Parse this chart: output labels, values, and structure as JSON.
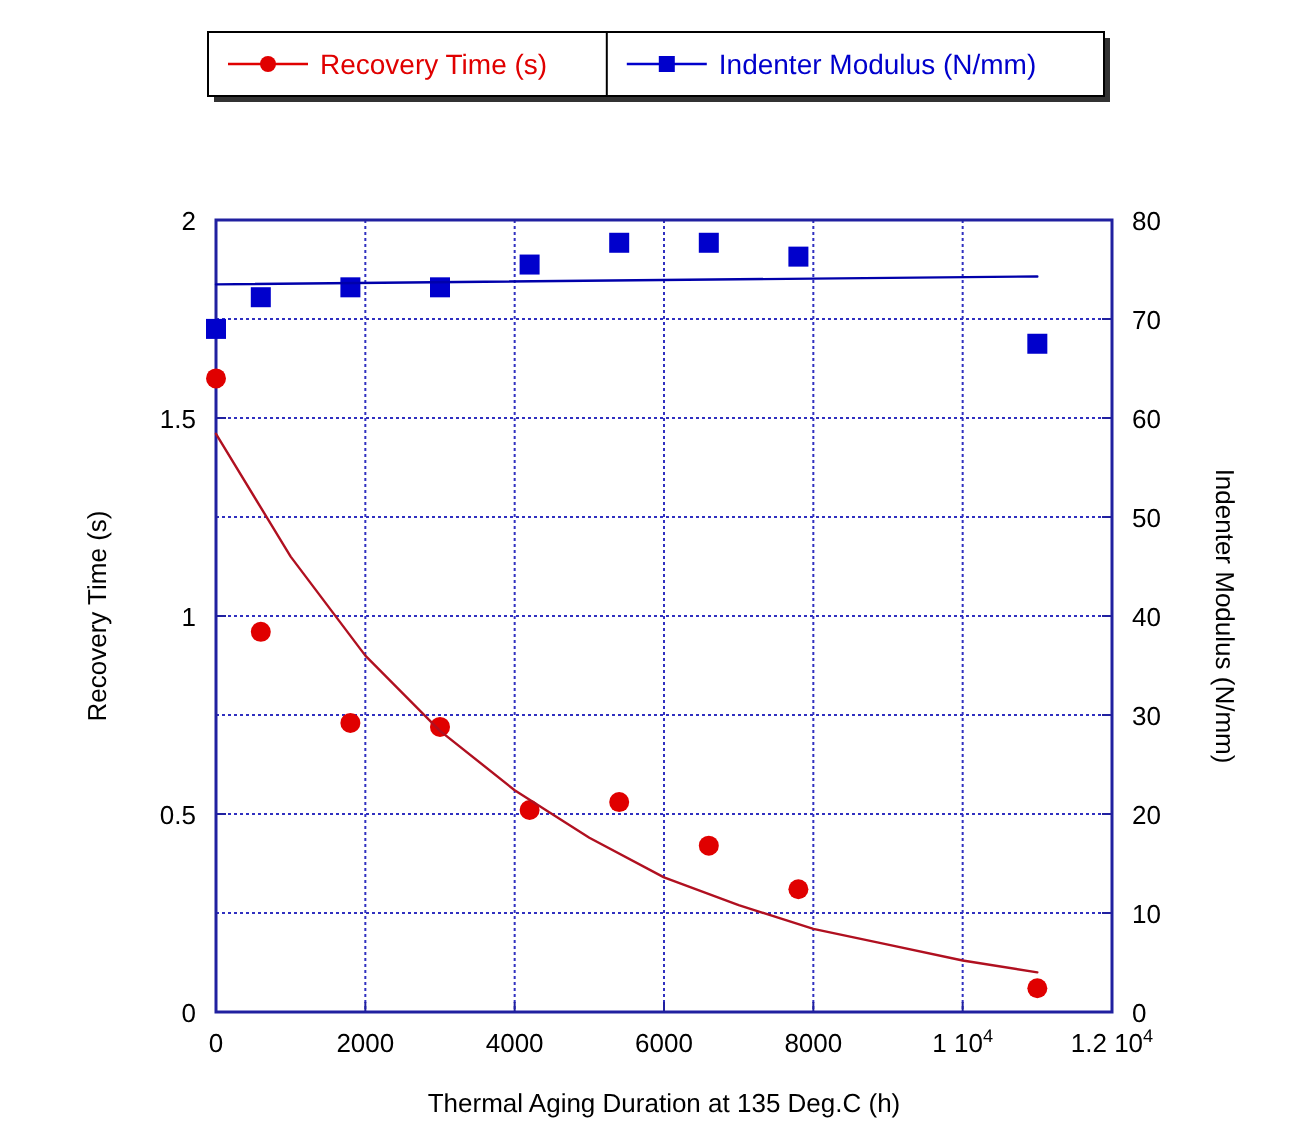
{
  "chart_data": {
    "type": "scatter",
    "xlabel": "Thermal Aging Duration at 135 Deg.C (h)",
    "ylabel": "Recovery Time (s)",
    "y2label": "Indenter Modulus (N/mm)",
    "x": [
      0,
      600,
      1800,
      3000,
      4200,
      5400,
      6600,
      7800,
      11000
    ],
    "series": [
      {
        "name": "Recovery Time (s)",
        "color": "#e00000",
        "marker": "circle",
        "values": [
          1.6,
          0.96,
          0.73,
          0.72,
          0.51,
          0.53,
          0.42,
          0.31,
          0.06
        ]
      },
      {
        "name": "Indenter Modulus (N/mm)",
        "color": "#0000cc",
        "marker": "square",
        "axis": "y2",
        "values": [
          69,
          72.2,
          73.2,
          73.2,
          75.5,
          77.7,
          77.7,
          76.3,
          67.5
        ]
      },
      {
        "type": "line",
        "color": "#b01020",
        "marker": "none",
        "x": [
          0,
          1000,
          2000,
          3000,
          4000,
          5000,
          6000,
          7000,
          8000,
          9000,
          10000,
          11000
        ],
        "values": [
          1.46,
          1.15,
          0.9,
          0.71,
          0.56,
          0.44,
          0.34,
          0.27,
          0.21,
          0.17,
          0.13,
          0.1
        ]
      },
      {
        "type": "line",
        "color": "#0000aa",
        "marker": "none",
        "axis": "y2",
        "x": [
          0,
          11000
        ],
        "values": [
          73.5,
          74.3
        ]
      }
    ],
    "xlim": [
      0,
      12000
    ],
    "xticks": [
      0,
      2000,
      4000,
      6000,
      8000,
      {
        "value": 10000,
        "label": "1 10$^{4}$"
      },
      {
        "value": 12000,
        "label": "1.2 10$^{4}$"
      }
    ],
    "ylim": [
      0,
      2
    ],
    "yticks": [
      0,
      0.5,
      1,
      1.5,
      2
    ],
    "y2lim": [
      0,
      80
    ],
    "y2ticks": [
      0,
      10,
      20,
      30,
      40,
      50,
      60,
      70,
      80
    ],
    "grid": true,
    "legend": "top"
  }
}
